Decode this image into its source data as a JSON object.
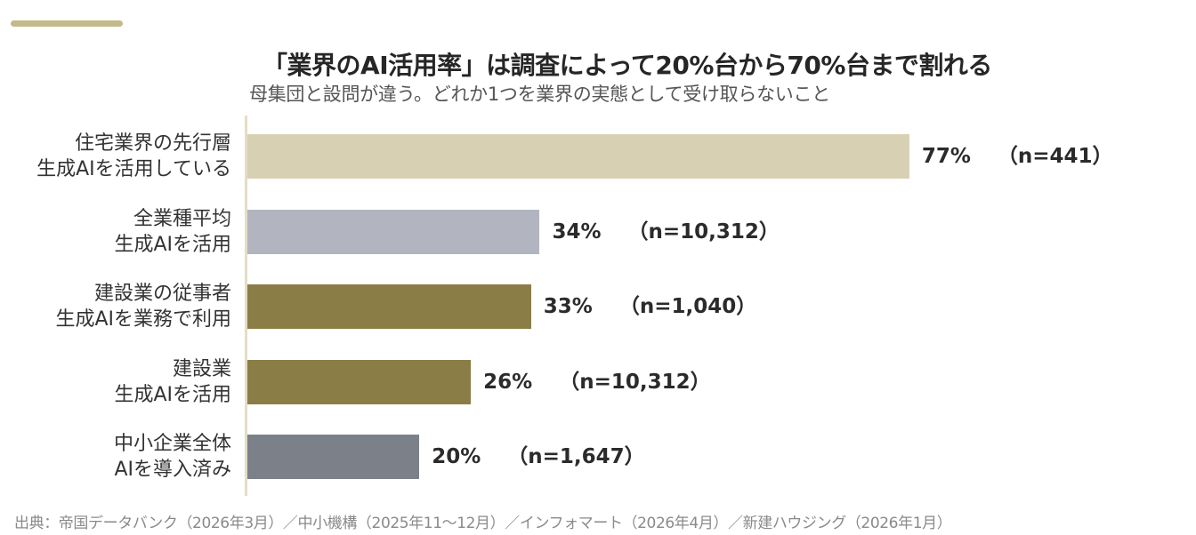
{
  "title": "「業界のAI活用率」は調査によって20%台から70%台まで割れる",
  "subtitle": "母集団と設問が違う。どれか1つを業界の実態として受け取らないこと",
  "source": "出典：帝国データバンク（2026年3月）／中小機構（2025年11～12月）／インフォマート（2026年4月）／新建ハウジング（2026年1月）",
  "chart_data": {
    "type": "bar",
    "orientation": "horizontal",
    "categories": [
      [
        "住宅業界の先行層",
        "生成AIを活用している"
      ],
      [
        "全業種平均",
        "生成AIを活用"
      ],
      [
        "建設業の従事者",
        "生成AIを業務で利用"
      ],
      [
        "建設業",
        "生成AIを活用"
      ],
      [
        "中小企業全体",
        "AIを導入済み"
      ]
    ],
    "values": [
      77,
      34,
      33,
      26,
      20
    ],
    "value_labels": [
      "77%",
      "34%",
      "33%",
      "26%",
      "20%"
    ],
    "sample_labels": [
      "（n=441）",
      "（n=10,312）",
      "（n=1,040）",
      "（n=10,312）",
      "（n=1,647）"
    ],
    "colors": [
      "#d8d0b2",
      "#b2b5bf",
      "#8b7d46",
      "#8b7d46",
      "#7c8089"
    ],
    "xlim": [
      0,
      100
    ],
    "grid": false,
    "legend": "none"
  }
}
